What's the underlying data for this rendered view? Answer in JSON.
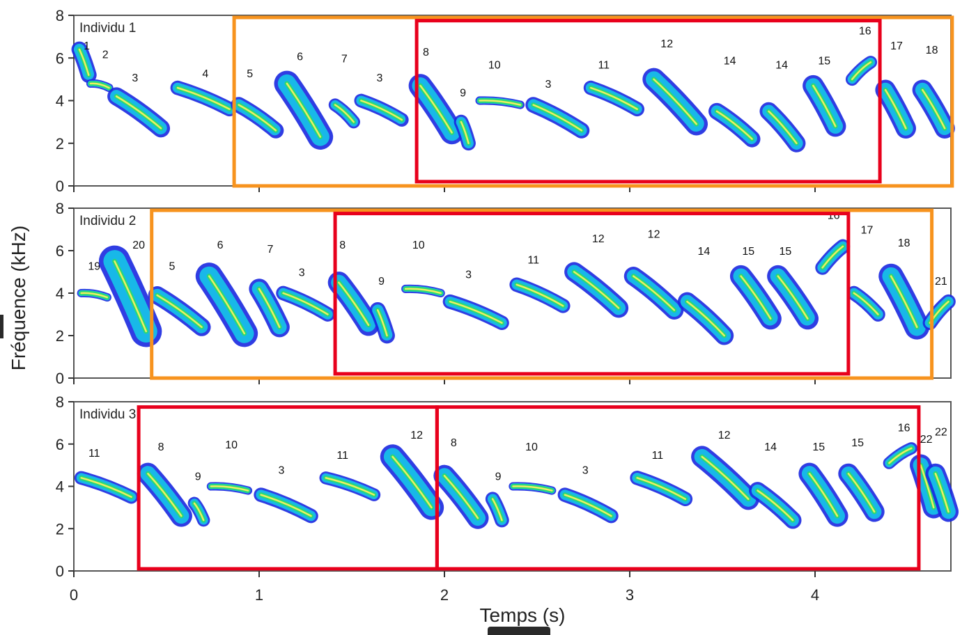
{
  "chart_data": {
    "type": "spectrogram",
    "xlabel": "Temps (s)",
    "ylabel": "Fréquence (kHz)",
    "xlim": [
      0,
      4.73
    ],
    "ylim": [
      0,
      8
    ],
    "xticks": [
      "0",
      "1",
      "2",
      "3",
      "4"
    ],
    "yticks": [
      "0",
      "2",
      "4",
      "6",
      "8"
    ],
    "colors": {
      "orange_box": "#f7931e",
      "red_box": "#e8001c",
      "low": "#1020e0",
      "mid": "#20d070",
      "high": "#f0f060"
    },
    "panels": [
      {
        "title": "Individu 1",
        "boxes": [
          {
            "color": "orange",
            "t": [
              0.865,
              4.74
            ],
            "f": [
              0,
              7.9
            ]
          },
          {
            "color": "red",
            "t": [
              1.85,
              4.35
            ],
            "f": [
              0.2,
              7.75
            ]
          }
        ],
        "syllables": [
          {
            "label": "1",
            "t": 0.07,
            "f": 6.4,
            "t0": 0.03,
            "t1": 0.08,
            "fs": 6.4,
            "fe": 5.2
          },
          {
            "label": "2",
            "t": 0.17,
            "f": 6.0,
            "t0": 0.09,
            "t1": 0.19,
            "fs": 4.8,
            "fe": 4.6
          },
          {
            "label": "3",
            "t": 0.33,
            "f": 4.9,
            "t0": 0.23,
            "t1": 0.47,
            "fs": 4.2,
            "fe": 2.7
          },
          {
            "label": "4",
            "t": 0.71,
            "f": 5.1,
            "t0": 0.56,
            "t1": 0.84,
            "fs": 4.6,
            "fe": 3.6
          },
          {
            "label": "5",
            "t": 0.95,
            "f": 5.1,
            "t0": 0.89,
            "t1": 1.09,
            "fs": 3.8,
            "fe": 2.6
          },
          {
            "label": "6",
            "t": 1.22,
            "f": 5.9,
            "t0": 1.15,
            "t1": 1.33,
            "fs": 4.8,
            "fe": 2.3
          },
          {
            "label": "7",
            "t": 1.46,
            "f": 5.8,
            "t0": 1.41,
            "t1": 1.51,
            "fs": 3.8,
            "fe": 3.0
          },
          {
            "label": "3",
            "t": 1.65,
            "f": 4.9,
            "t0": 1.55,
            "t1": 1.77,
            "fs": 4.0,
            "fe": 3.1
          },
          {
            "label": "8",
            "t": 1.9,
            "f": 6.1,
            "t0": 1.87,
            "t1": 2.04,
            "fs": 4.7,
            "fe": 2.5
          },
          {
            "label": "9",
            "t": 2.1,
            "f": 4.2,
            "t0": 2.09,
            "t1": 2.13,
            "fs": 3.0,
            "fe": 2.0
          },
          {
            "label": "10",
            "t": 2.27,
            "f": 5.5,
            "t0": 2.19,
            "t1": 2.41,
            "fs": 4.0,
            "fe": 3.8
          },
          {
            "label": "3",
            "t": 2.56,
            "f": 4.6,
            "t0": 2.48,
            "t1": 2.74,
            "fs": 3.8,
            "fe": 2.6
          },
          {
            "label": "11",
            "t": 2.86,
            "f": 5.5,
            "t0": 2.79,
            "t1": 3.04,
            "fs": 4.6,
            "fe": 3.6
          },
          {
            "label": "12",
            "t": 3.2,
            "f": 6.5,
            "t0": 3.13,
            "t1": 3.36,
            "fs": 5.0,
            "fe": 2.9
          },
          {
            "label": "14",
            "t": 3.54,
            "f": 5.7,
            "t0": 3.47,
            "t1": 3.66,
            "fs": 3.5,
            "fe": 2.2
          },
          {
            "label": "14",
            "t": 3.82,
            "f": 5.5,
            "t0": 3.75,
            "t1": 3.9,
            "fs": 3.5,
            "fe": 2.0
          },
          {
            "label": "15",
            "t": 4.05,
            "f": 5.7,
            "t0": 3.99,
            "t1": 4.11,
            "fs": 4.7,
            "fe": 2.8
          },
          {
            "label": "16",
            "t": 4.27,
            "f": 7.1,
            "t0": 4.2,
            "t1": 4.3,
            "fs": 5.0,
            "fe": 5.8
          },
          {
            "label": "17",
            "t": 4.44,
            "f": 6.4,
            "t0": 4.38,
            "t1": 4.49,
            "fs": 4.5,
            "fe": 2.7
          },
          {
            "label": "18",
            "t": 4.63,
            "f": 6.2,
            "t0": 4.58,
            "t1": 4.7,
            "fs": 4.5,
            "fe": 2.7
          }
        ]
      },
      {
        "title": "Individu 2",
        "boxes": [
          {
            "color": "orange",
            "t": [
              0.42,
              4.63
            ],
            "f": [
              0,
              7.9
            ]
          },
          {
            "color": "red",
            "t": [
              1.41,
              4.18
            ],
            "f": [
              0.2,
              7.75
            ]
          }
        ],
        "syllables": [
          {
            "label": "19",
            "t": 0.11,
            "f": 5.1,
            "t0": 0.04,
            "t1": 0.18,
            "fs": 4.0,
            "fe": 3.8
          },
          {
            "label": "20",
            "t": 0.35,
            "f": 6.1,
            "t0": 0.22,
            "t1": 0.39,
            "fs": 5.5,
            "fe": 2.2
          },
          {
            "label": "5",
            "t": 0.53,
            "f": 5.1,
            "t0": 0.45,
            "t1": 0.69,
            "fs": 3.9,
            "fe": 2.4
          },
          {
            "label": "6",
            "t": 0.79,
            "f": 6.1,
            "t0": 0.73,
            "t1": 0.92,
            "fs": 4.8,
            "fe": 2.1
          },
          {
            "label": "7",
            "t": 1.06,
            "f": 5.9,
            "t0": 1.0,
            "t1": 1.11,
            "fs": 4.2,
            "fe": 2.4
          },
          {
            "label": "3",
            "t": 1.23,
            "f": 4.8,
            "t0": 1.13,
            "t1": 1.37,
            "fs": 4.0,
            "fe": 3.0
          },
          {
            "label": "8",
            "t": 1.45,
            "f": 6.1,
            "t0": 1.43,
            "t1": 1.59,
            "fs": 4.5,
            "fe": 2.5
          },
          {
            "label": "9",
            "t": 1.66,
            "f": 4.4,
            "t0": 1.64,
            "t1": 1.69,
            "fs": 3.2,
            "fe": 2.0
          },
          {
            "label": "10",
            "t": 1.86,
            "f": 6.1,
            "t0": 1.79,
            "t1": 1.98,
            "fs": 4.2,
            "fe": 4.0
          },
          {
            "label": "3",
            "t": 2.13,
            "f": 4.7,
            "t0": 2.03,
            "t1": 2.31,
            "fs": 3.6,
            "fe": 2.6
          },
          {
            "label": "11",
            "t": 2.48,
            "f": 5.4,
            "t0": 2.39,
            "t1": 2.64,
            "fs": 4.4,
            "fe": 3.4
          },
          {
            "label": "12",
            "t": 2.83,
            "f": 6.4,
            "t0": 2.7,
            "t1": 2.94,
            "fs": 5.0,
            "fe": 3.3
          },
          {
            "label": "12",
            "t": 3.13,
            "f": 6.6,
            "t0": 3.02,
            "t1": 3.24,
            "fs": 4.8,
            "fe": 3.2
          },
          {
            "label": "14",
            "t": 3.4,
            "f": 5.8,
            "t0": 3.31,
            "t1": 3.51,
            "fs": 3.6,
            "fe": 2.0
          },
          {
            "label": "15",
            "t": 3.64,
            "f": 5.8,
            "t0": 3.6,
            "t1": 3.76,
            "fs": 4.8,
            "fe": 2.8
          },
          {
            "label": "15",
            "t": 3.84,
            "f": 5.8,
            "t0": 3.8,
            "t1": 3.96,
            "fs": 4.8,
            "fe": 2.8
          },
          {
            "label": "16",
            "t": 4.1,
            "f": 7.5,
            "t0": 4.04,
            "t1": 4.15,
            "fs": 5.2,
            "fe": 6.2
          },
          {
            "label": "17",
            "t": 4.28,
            "f": 6.8,
            "t0": 4.21,
            "t1": 4.34,
            "fs": 4.0,
            "fe": 3.0
          },
          {
            "label": "18",
            "t": 4.48,
            "f": 6.2,
            "t0": 4.41,
            "t1": 4.55,
            "fs": 4.8,
            "fe": 2.4
          },
          {
            "label": "21",
            "t": 4.68,
            "f": 4.4,
            "t0": 4.62,
            "t1": 4.72,
            "fs": 2.6,
            "fe": 3.6
          }
        ]
      },
      {
        "title": "Individu 3",
        "boxes": [
          {
            "color": "red",
            "t": [
              0.35,
              1.96
            ],
            "f": [
              0.1,
              7.75
            ]
          },
          {
            "color": "red",
            "t": [
              1.96,
              4.56
            ],
            "f": [
              0.1,
              7.75
            ]
          }
        ],
        "syllables": [
          {
            "label": "11",
            "t": 0.11,
            "f": 5.4,
            "t0": 0.04,
            "t1": 0.31,
            "fs": 4.4,
            "fe": 3.5
          },
          {
            "label": "8",
            "t": 0.47,
            "f": 5.7,
            "t0": 0.4,
            "t1": 0.58,
            "fs": 4.6,
            "fe": 2.6
          },
          {
            "label": "9",
            "t": 0.67,
            "f": 4.3,
            "t0": 0.65,
            "t1": 0.7,
            "fs": 3.2,
            "fe": 2.4
          },
          {
            "label": "10",
            "t": 0.85,
            "f": 5.8,
            "t0": 0.74,
            "t1": 0.94,
            "fs": 4.0,
            "fe": 3.8
          },
          {
            "label": "3",
            "t": 1.12,
            "f": 4.6,
            "t0": 1.01,
            "t1": 1.28,
            "fs": 3.6,
            "fe": 2.6
          },
          {
            "label": "11",
            "t": 1.45,
            "f": 5.3,
            "t0": 1.36,
            "t1": 1.62,
            "fs": 4.4,
            "fe": 3.6
          },
          {
            "label": "12",
            "t": 1.85,
            "f": 6.25,
            "t0": 1.72,
            "t1": 1.93,
            "fs": 5.4,
            "fe": 3.0
          },
          {
            "label": "8",
            "t": 2.05,
            "f": 5.9,
            "t0": 2.0,
            "t1": 2.18,
            "fs": 4.5,
            "fe": 2.5
          },
          {
            "label": "9",
            "t": 2.29,
            "f": 4.3,
            "t0": 2.26,
            "t1": 2.31,
            "fs": 3.4,
            "fe": 2.4
          },
          {
            "label": "10",
            "t": 2.47,
            "f": 5.7,
            "t0": 2.37,
            "t1": 2.58,
            "fs": 4.0,
            "fe": 3.8
          },
          {
            "label": "3",
            "t": 2.76,
            "f": 4.6,
            "t0": 2.65,
            "t1": 2.9,
            "fs": 3.6,
            "fe": 2.6
          },
          {
            "label": "11",
            "t": 3.15,
            "f": 5.3,
            "t0": 3.04,
            "t1": 3.3,
            "fs": 4.4,
            "fe": 3.4
          },
          {
            "label": "12",
            "t": 3.51,
            "f": 6.25,
            "t0": 3.39,
            "t1": 3.64,
            "fs": 5.4,
            "fe": 3.4
          },
          {
            "label": "14",
            "t": 3.76,
            "f": 5.7,
            "t0": 3.69,
            "t1": 3.88,
            "fs": 3.8,
            "fe": 2.4
          },
          {
            "label": "15",
            "t": 4.02,
            "f": 5.7,
            "t0": 3.97,
            "t1": 4.12,
            "fs": 4.6,
            "fe": 2.6
          },
          {
            "label": "15",
            "t": 4.23,
            "f": 5.9,
            "t0": 4.18,
            "t1": 4.32,
            "fs": 4.6,
            "fe": 2.8
          },
          {
            "label": "16",
            "t": 4.48,
            "f": 6.6,
            "t0": 4.4,
            "t1": 4.52,
            "fs": 5.1,
            "fe": 5.8
          },
          {
            "label": "22",
            "t": 4.6,
            "f": 6.05,
            "t0": 4.57,
            "t1": 4.64,
            "fs": 5.0,
            "fe": 3.0
          },
          {
            "label": "22",
            "t": 4.68,
            "f": 6.4,
            "t0": 4.65,
            "t1": 4.72,
            "fs": 4.6,
            "fe": 2.8
          }
        ]
      }
    ]
  }
}
